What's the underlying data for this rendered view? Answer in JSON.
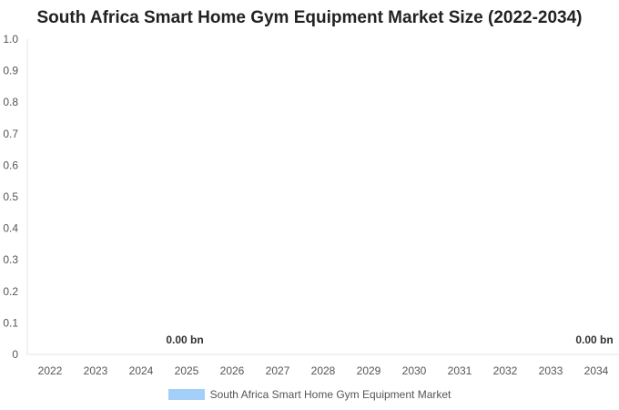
{
  "chart_data": {
    "type": "bar",
    "title": "South Africa Smart Home Gym Equipment Market Size (2022-2034)",
    "categories": [
      "2022",
      "2023",
      "2024",
      "2025",
      "2026",
      "2027",
      "2028",
      "2029",
      "2030",
      "2031",
      "2032",
      "2033",
      "2034"
    ],
    "series": [
      {
        "name": "South Africa Smart Home Gym Equipment Market",
        "values": [
          0,
          0,
          0,
          0,
          0,
          0,
          0,
          0,
          0,
          0,
          0,
          0,
          0
        ],
        "color": "#a3cff8"
      }
    ],
    "data_labels": [
      {
        "category": "2025",
        "text": "0.00 bn"
      },
      {
        "category": "2034",
        "text": "0.00 bn"
      }
    ],
    "ylim": [
      0,
      1.0
    ],
    "yticks": [
      "0",
      "0.1",
      "0.2",
      "0.3",
      "0.4",
      "0.5",
      "0.6",
      "0.7",
      "0.8",
      "0.9",
      "1.0"
    ],
    "xlabel": "",
    "ylabel": "",
    "grid": false,
    "legend_position": "bottom"
  }
}
